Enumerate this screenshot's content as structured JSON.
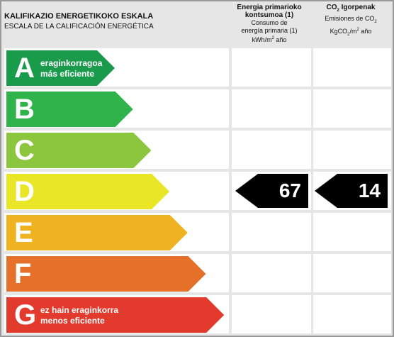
{
  "header": {
    "title": "KALIFIKAZIO ENERGETIKOKO ESKALA",
    "subtitle": "ESCALA DE LA CALIFICACIÓN ENERGÉTICA"
  },
  "columns": {
    "primary_energy": {
      "title_line1": "Energia primarioko",
      "title_line2": "kontsumoa (1)",
      "sub_line1": "Consumo de",
      "sub_line2": "energía primaria (1)",
      "unit_pre": "kWh/m",
      "unit_sup": "2",
      "unit_post": " año"
    },
    "co2": {
      "title_pre": "CO",
      "title_sub": "2",
      "title_post": " Igorpenak",
      "sub_pre": "Emisiones de CO",
      "sub_sub": "2",
      "unit_pre": "KgCO",
      "unit_sub": "2",
      "unit_mid": "/m",
      "unit_sup": "2",
      "unit_post": " año"
    }
  },
  "scale": [
    {
      "letter": "A",
      "line1": "eraginkorragoa",
      "line2": "más eficiente",
      "color": "#1a9a4b"
    },
    {
      "letter": "B",
      "line1": "",
      "line2": "",
      "color": "#2fb34a"
    },
    {
      "letter": "C",
      "line1": "",
      "line2": "",
      "color": "#8cc63f"
    },
    {
      "letter": "D",
      "line1": "",
      "line2": "",
      "color": "#e8e626"
    },
    {
      "letter": "E",
      "line1": "",
      "line2": "",
      "color": "#efb221"
    },
    {
      "letter": "F",
      "line1": "",
      "line2": "",
      "color": "#e57029"
    },
    {
      "letter": "G",
      "line1": "ez hain eraginkorra",
      "line2": "menos eficiente",
      "color": "#e23a2d"
    }
  ],
  "indicators": {
    "rating_letter": "D",
    "primary_energy_value": "67",
    "co2_value": "14",
    "color": "#000000"
  }
}
